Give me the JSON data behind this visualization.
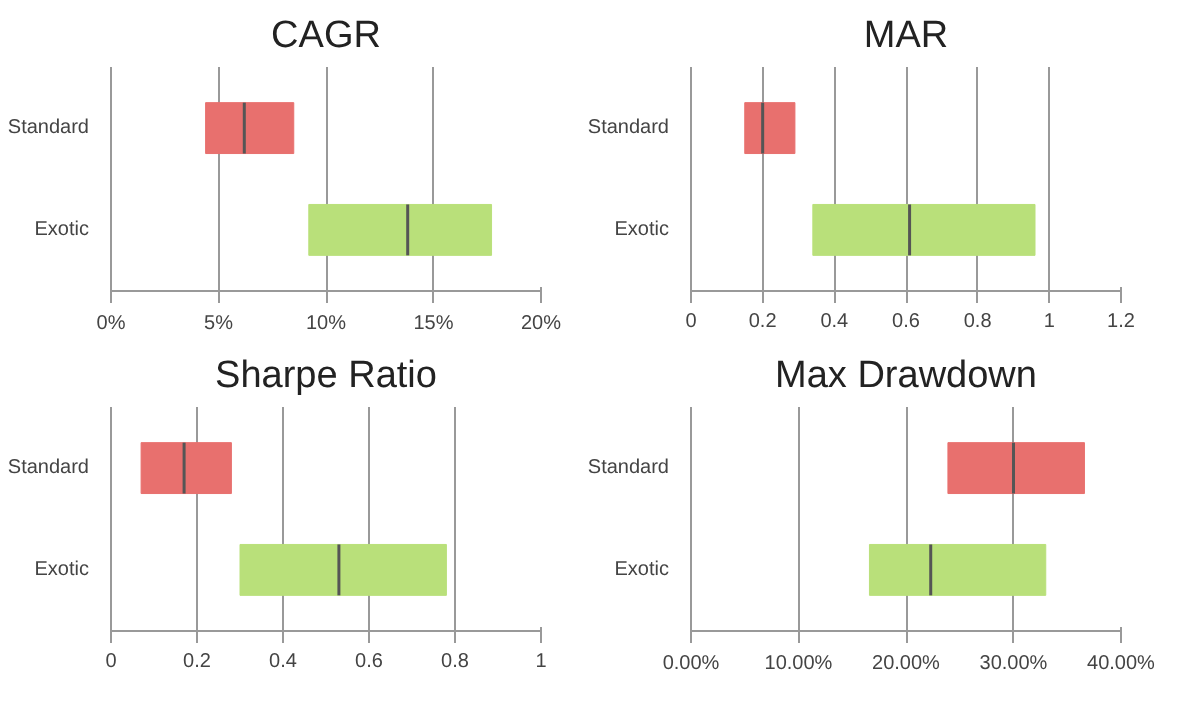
{
  "chart_data": [
    {
      "type": "box",
      "title": "CAGR",
      "orientation": "horizontal",
      "categories": [
        "Standard",
        "Exotic"
      ],
      "colors": [
        "#e8706e",
        "#b9e07a"
      ],
      "boxes": [
        {
          "low": 4.4,
          "q1": 4.4,
          "median": 6.2,
          "q3": 8.5,
          "high": 8.5
        },
        {
          "low": 9.2,
          "q1": 9.2,
          "median": 13.8,
          "q3": 17.7,
          "high": 17.7
        }
      ],
      "xlim": [
        0,
        20
      ],
      "xticks": [
        {
          "value": 0,
          "label": "0%"
        },
        {
          "value": 5,
          "label": "5%"
        },
        {
          "value": 10,
          "label": "10%"
        },
        {
          "value": 15,
          "label": "15%"
        },
        {
          "value": 20,
          "label": "20%"
        }
      ],
      "grid": "x"
    },
    {
      "type": "box",
      "title": "MAR",
      "orientation": "horizontal",
      "categories": [
        "Standard",
        "Exotic"
      ],
      "colors": [
        "#e8706e",
        "#b9e07a"
      ],
      "boxes": [
        {
          "low": 0.15,
          "q1": 0.15,
          "median": 0.2,
          "q3": 0.29,
          "high": 0.29
        },
        {
          "low": 0.34,
          "q1": 0.34,
          "median": 0.61,
          "q3": 0.96,
          "high": 0.96
        }
      ],
      "xlim": [
        0,
        1.2
      ],
      "xticks": [
        0,
        0.2,
        0.4,
        0.6,
        0.8,
        1,
        1.2
      ],
      "grid": "x"
    },
    {
      "type": "box",
      "title": "Sharpe Ratio",
      "orientation": "horizontal",
      "categories": [
        "Standard",
        "Exotic"
      ],
      "colors": [
        "#e8706e",
        "#b9e07a"
      ],
      "boxes": [
        {
          "low": 0.07,
          "q1": 0.07,
          "median": 0.17,
          "q3": 0.28,
          "high": 0.28
        },
        {
          "low": 0.3,
          "q1": 0.3,
          "median": 0.53,
          "q3": 0.78,
          "high": 0.78
        }
      ],
      "xlim": [
        0,
        1
      ],
      "xticks": [
        0,
        0.2,
        0.4,
        0.6,
        0.8,
        1
      ],
      "grid": "x"
    },
    {
      "type": "box",
      "title": "Max Drawdown",
      "orientation": "horizontal",
      "categories": [
        "Standard",
        "Exotic"
      ],
      "colors": [
        "#e8706e",
        "#b9e07a"
      ],
      "boxes": [
        {
          "low": 23.9,
          "q1": 23.9,
          "median": 30,
          "q3": 36.6,
          "high": 36.6
        },
        {
          "low": 16.6,
          "q1": 16.6,
          "median": 22.3,
          "q3": 33,
          "high": 33
        }
      ],
      "xlim": [
        0,
        40
      ],
      "xticks": [
        {
          "value": 0,
          "label": "0.00%"
        },
        {
          "value": 10,
          "label": "10.00%"
        },
        {
          "value": 20,
          "label": "20.00%"
        },
        {
          "value": 30,
          "label": "30.00%"
        },
        {
          "value": 40,
          "label": "40.00%"
        }
      ],
      "grid": "x"
    }
  ]
}
